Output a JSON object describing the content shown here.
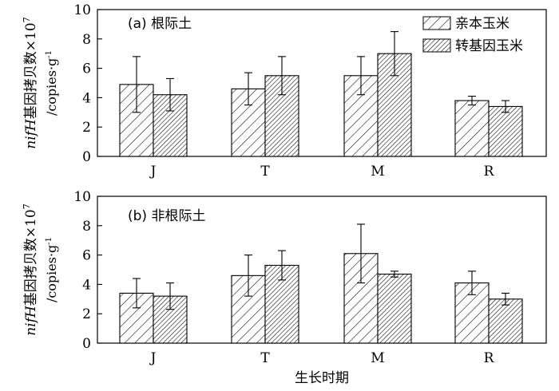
{
  "chart_data": [
    {
      "type": "bar",
      "title": "(a) 根际土",
      "ylabel_main": "nifH基因拷贝数×10",
      "ylabel_exp": "7",
      "ylabel_unit": "/copies·g",
      "ylabel_unit_exp": "-1",
      "ylim": [
        0,
        10
      ],
      "yticks": [
        "0",
        "2",
        "4",
        "6",
        "8",
        "10"
      ],
      "categories": [
        "J",
        "T",
        "M",
        "R"
      ],
      "legend_position": "top-right",
      "series": [
        {
          "name": "亲本玉米",
          "pattern": "sparse-hatch",
          "values": [
            4.9,
            4.6,
            5.5,
            3.8
          ],
          "errors": [
            1.9,
            1.1,
            1.3,
            0.3
          ]
        },
        {
          "name": "转基因玉米",
          "pattern": "dense-hatch",
          "values": [
            4.2,
            5.5,
            7.0,
            3.4
          ],
          "errors": [
            1.1,
            1.3,
            1.5,
            0.4
          ]
        }
      ]
    },
    {
      "type": "bar",
      "title": "(b) 非根际土",
      "ylabel_main": "nifH基因拷贝数×10",
      "ylabel_exp": "7",
      "ylabel_unit": "/copies·g",
      "ylabel_unit_exp": "-1",
      "ylim": [
        0,
        10
      ],
      "yticks": [
        "0",
        "2",
        "4",
        "6",
        "8",
        "10"
      ],
      "categories": [
        "J",
        "T",
        "M",
        "R"
      ],
      "xlabel": "生长时期",
      "series": [
        {
          "values": [
            3.4,
            4.6,
            6.1,
            4.1
          ],
          "errors": [
            1.0,
            1.4,
            2.0,
            0.8
          ]
        },
        {
          "values": [
            3.2,
            5.3,
            4.7,
            3.0
          ],
          "errors": [
            0.9,
            1.0,
            0.2,
            0.4
          ]
        }
      ]
    }
  ],
  "colors": {
    "axis": "#000000",
    "bar_fill": "#ffffff",
    "hatch": "#000000"
  }
}
